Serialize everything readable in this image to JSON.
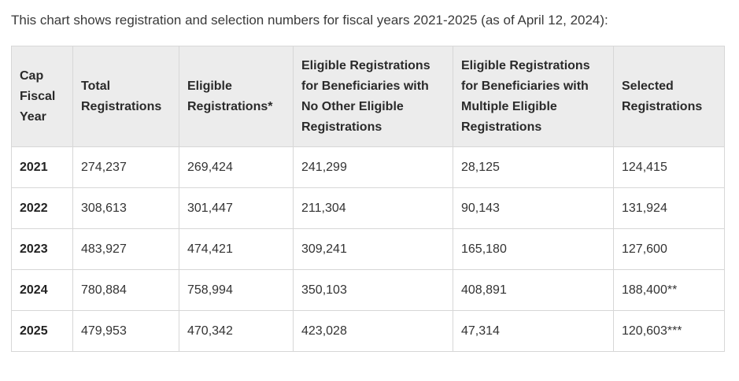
{
  "intro_text": "This chart shows registration and selection numbers for fiscal years 2021-2025 (as of April 12, 2024):",
  "table": {
    "headers": [
      "Cap\nFiscal\nYear",
      "Total\nRegistrations",
      "Eligible\nRegistrations*",
      "Eligible Registrations\nfor Beneficiaries with\nNo Other Eligible\nRegistrations",
      "Eligible Registrations\nfor Beneficiaries with\nMultiple Eligible\nRegistrations",
      "Selected\nRegistrations"
    ],
    "rows": [
      [
        "2021",
        "274,237",
        "269,424",
        "241,299",
        "28,125",
        "124,415"
      ],
      [
        "2022",
        "308,613",
        "301,447",
        "211,304",
        "90,143",
        "131,924"
      ],
      [
        "2023",
        "483,927",
        "474,421",
        "309,241",
        "165,180",
        "127,600"
      ],
      [
        "2024",
        "780,884",
        "758,994",
        "350,103",
        "408,891",
        "188,400**"
      ],
      [
        "2025",
        "479,953",
        "470,342",
        "423,028",
        "47,314",
        "120,603***"
      ]
    ]
  },
  "chart_data": {
    "type": "table",
    "title": "This chart shows registration and selection numbers for fiscal years 2021-2025 (as of April 12, 2024):",
    "columns": [
      "Cap Fiscal Year",
      "Total Registrations",
      "Eligible Registrations*",
      "Eligible Registrations for Beneficiaries with No Other Eligible Registrations",
      "Eligible Registrations for Beneficiaries with Multiple Eligible Registrations",
      "Selected Registrations"
    ],
    "categories": [
      "2021",
      "2022",
      "2023",
      "2024",
      "2025"
    ],
    "series": [
      {
        "name": "Total Registrations",
        "values": [
          274237,
          308613,
          483927,
          780884,
          479953
        ]
      },
      {
        "name": "Eligible Registrations*",
        "values": [
          269424,
          301447,
          474421,
          758994,
          470342
        ]
      },
      {
        "name": "Eligible Registrations for Beneficiaries with No Other Eligible Registrations",
        "values": [
          241299,
          211304,
          309241,
          350103,
          423028
        ]
      },
      {
        "name": "Eligible Registrations for Beneficiaries with Multiple Eligible Registrations",
        "values": [
          28125,
          90143,
          165180,
          408891,
          47314
        ]
      },
      {
        "name": "Selected Registrations",
        "values": [
          124415,
          131924,
          127600,
          188400,
          120603
        ]
      }
    ]
  }
}
